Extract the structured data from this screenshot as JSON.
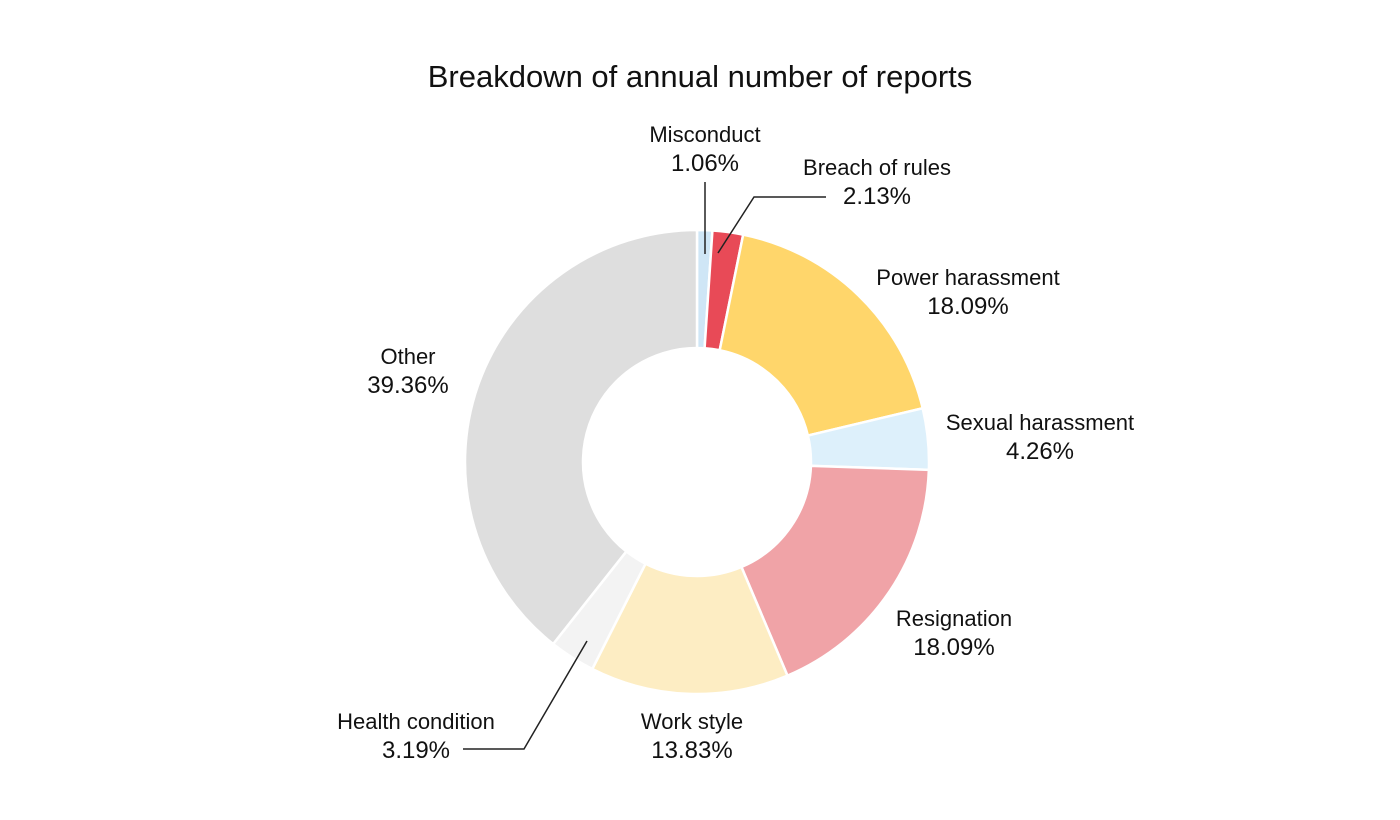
{
  "chart_data": {
    "type": "pie",
    "title": "Breakdown of annual number of reports",
    "donut": true,
    "slices": [
      {
        "label": "Misconduct",
        "value": 1.06,
        "value_label": "1.06%",
        "color": "#cfe6f6"
      },
      {
        "label": "Breach of rules",
        "value": 2.13,
        "value_label": "2.13%",
        "color": "#e84a57"
      },
      {
        "label": "Power harassment",
        "value": 18.09,
        "value_label": "18.09%",
        "color": "#ffd66b"
      },
      {
        "label": "Sexual harassment",
        "value": 4.26,
        "value_label": "4.26%",
        "color": "#ddf0fb"
      },
      {
        "label": "Resignation",
        "value": 18.09,
        "value_label": "18.09%",
        "color": "#f0a3a7"
      },
      {
        "label": "Work style",
        "value": 13.83,
        "value_label": "13.83%",
        "color": "#fdedc3"
      },
      {
        "label": "Health condition",
        "value": 3.19,
        "value_label": "3.19%",
        "color": "#f3f3f3"
      },
      {
        "label": "Other",
        "value": 39.36,
        "value_label": "39.36%",
        "color": "#dedede"
      }
    ]
  }
}
